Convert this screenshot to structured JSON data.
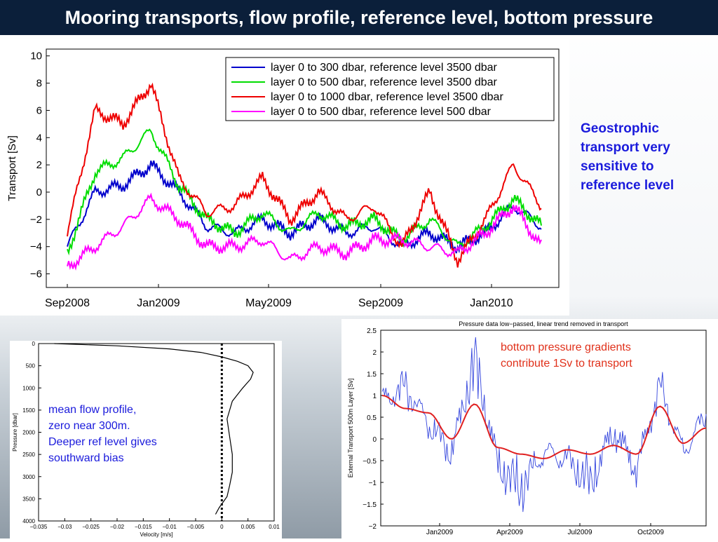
{
  "header": {
    "title": "Mooring transports, flow profile, reference level, bottom pressure"
  },
  "notes": {
    "geostrophic": "Geostrophic\ntransport very\nsensitive to\nreference level",
    "profile": "mean flow profile,\nzero near 300m.\nDeeper ref level gives\nsouthward bias",
    "pressure": "bottom pressure gradients\ncontribute 1Sv to transport"
  },
  "chart_data": [
    {
      "type": "line",
      "title": "",
      "xlabel": "",
      "ylabel": "Transport [Sv]",
      "ylim": [
        -7,
        10.5
      ],
      "yticks": [
        "10",
        "8",
        "6",
        "4",
        "2",
        "0",
        "−2",
        "−4",
        "−6"
      ],
      "xticks": [
        "Sep2008",
        "Jan2009",
        "May2009",
        "Sep2009",
        "Jan2010"
      ],
      "legend_position": "top-right",
      "x": [
        "Oct2008",
        "Nov2008",
        "Dec2008",
        "Jan2009",
        "Feb2009",
        "Mar2009",
        "Apr2009",
        "May2009",
        "Jun2009",
        "Jul2009",
        "Aug2009",
        "Sep2009",
        "Oct2009",
        "Nov2009",
        "Dec2009",
        "Jan2010",
        "Feb2010",
        "Mar2010"
      ],
      "series": [
        {
          "name": "layer 0 to 300 dbar, reference level 3500 dbar",
          "color": "#0000cc",
          "values": [
            -4,
            0,
            0.5,
            2,
            0,
            -2.5,
            -3,
            -2,
            -3,
            -2,
            -3,
            -2.5,
            -4,
            -3,
            -4,
            -3,
            -1,
            -2.5
          ]
        },
        {
          "name": "layer 0 to 500 dbar, reference level 3500 dbar",
          "color": "#00dd00",
          "values": [
            -4.5,
            1.5,
            2.5,
            4.5,
            0.5,
            -2,
            -3,
            -1.5,
            -3,
            -1.5,
            -2.5,
            -2,
            -3.5,
            -2,
            -4,
            -2.5,
            -0.5,
            -2.5
          ]
        },
        {
          "name": "layer 0 to 1000 dbar, reference level 3500 dbar",
          "color": "#ee0000",
          "values": [
            -3,
            6,
            5,
            8,
            1,
            -1.5,
            -1,
            1,
            -2,
            0,
            -2,
            -1,
            -4,
            0,
            -5,
            -2,
            2,
            -1
          ]
        },
        {
          "name": "layer 0 to 500 dbar, reference level 500 dbar",
          "color": "#ff00ff",
          "values": [
            -5.5,
            -4,
            -2.5,
            -0.5,
            -2,
            -4,
            -4,
            -3.5,
            -5,
            -4,
            -4.5,
            -3.5,
            -3.5,
            -4,
            -4.5,
            -3,
            -1,
            -4
          ]
        }
      ]
    },
    {
      "type": "line",
      "title": "",
      "xlabel": "Velocity [m/s]",
      "ylabel": "Pressure [dbar]",
      "xlim": [
        -0.035,
        0.01
      ],
      "ylim": [
        4000,
        0
      ],
      "xticks": [
        "−0.035",
        "−0.03",
        "−0.025",
        "−0.02",
        "−0.015",
        "−0.01",
        "−0.005",
        "0",
        "0.005",
        "0.01"
      ],
      "yticks": [
        "0",
        "500",
        "1000",
        "1500",
        "2000",
        "2500",
        "3000",
        "3500",
        "4000"
      ],
      "series": [
        {
          "name": "",
          "color": "#000000",
          "x": [
            -0.032,
            -0.02,
            -0.01,
            -0.004,
            0,
            0.003,
            0.005,
            0.006,
            0.0055,
            0.004,
            0.002,
            0.001,
            0.0015,
            0.002,
            0.002,
            0.0015,
            0.001,
            -0.0005,
            -0.0012
          ],
          "y": [
            0,
            50,
            120,
            200,
            300,
            400,
            500,
            650,
            800,
            1000,
            1300,
            1700,
            2100,
            2500,
            2900,
            3200,
            3450,
            3700,
            3850
          ]
        }
      ],
      "reference_line_x": 0
    },
    {
      "type": "line",
      "title": "Pressure data low−passed, linear trend removed in transport",
      "xlabel": "",
      "ylabel": "External Transport 500m Layer [Sv]",
      "ylim": [
        -2,
        2.5
      ],
      "yticks": [
        "2.5",
        "2",
        "1.5",
        "1",
        "0.5",
        "0",
        "−0.5",
        "−1",
        "−1.5",
        "−2"
      ],
      "xticks": [
        "Jan2009",
        "Apr2009",
        "Jul2009",
        "Oct2009"
      ],
      "x": [
        "Oct2008",
        "Nov2008",
        "Dec2008",
        "Jan2009",
        "Feb2009",
        "Mar2009",
        "Apr2009",
        "May2009",
        "Jun2009",
        "Jul2009",
        "Aug2009",
        "Sep2009",
        "Oct2009",
        "Nov2009",
        "Dec2009"
      ],
      "series": [
        {
          "name": "",
          "color": "#e02020",
          "values": [
            1.0,
            0.7,
            0.6,
            0.0,
            0.8,
            -0.2,
            -0.35,
            -0.45,
            -0.25,
            -0.35,
            -0.15,
            -0.35,
            0.75,
            -0.1,
            0.25
          ]
        },
        {
          "name": "",
          "color": "#3344dd",
          "values": [
            0.8,
            1.5,
            0.2,
            -0.5,
            2.4,
            -0.8,
            -1.6,
            -0.2,
            -0.6,
            -1.4,
            0.4,
            -0.9,
            1.5,
            -0.4,
            0.7
          ]
        }
      ]
    }
  ]
}
